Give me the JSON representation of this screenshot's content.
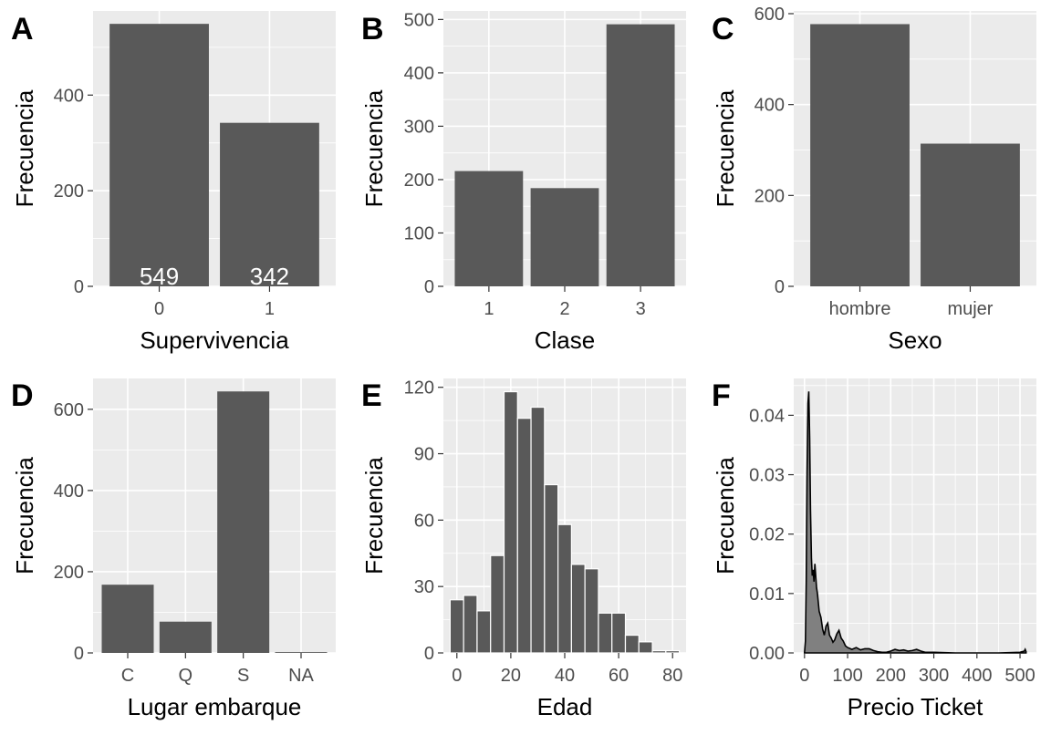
{
  "chart_data": [
    {
      "tag": "A",
      "type": "bar",
      "categories": [
        "0",
        "1"
      ],
      "values": [
        549,
        342
      ],
      "bar_labels": [
        "549",
        "342"
      ],
      "xlabel": "Supervivencia",
      "ylabel": "Frecuencia",
      "ylim": [
        0,
        576
      ],
      "yticks": [
        0,
        200,
        400
      ]
    },
    {
      "tag": "B",
      "type": "bar",
      "categories": [
        "1",
        "2",
        "3"
      ],
      "values": [
        216,
        184,
        491
      ],
      "xlabel": "Clase",
      "ylabel": "Frecuencia",
      "ylim": [
        0,
        516
      ],
      "yticks": [
        0,
        100,
        200,
        300,
        400,
        500
      ]
    },
    {
      "tag": "C",
      "type": "bar",
      "categories": [
        "hombre",
        "mujer"
      ],
      "values": [
        577,
        314
      ],
      "xlabel": "Sexo",
      "ylabel": "Frecuencia",
      "ylim": [
        0,
        606
      ],
      "yticks": [
        0,
        200,
        400,
        600
      ]
    },
    {
      "tag": "D",
      "type": "bar",
      "categories": [
        "C",
        "Q",
        "S",
        "NA"
      ],
      "values": [
        168,
        77,
        644,
        2
      ],
      "xlabel": "Lugar embarque",
      "ylabel": "Frecuencia",
      "ylim": [
        0,
        676
      ],
      "yticks": [
        0,
        200,
        400,
        600
      ]
    },
    {
      "tag": "E",
      "type": "histogram",
      "bins": [
        {
          "x0": -2.5,
          "x1": 2.5,
          "count": 24
        },
        {
          "x0": 2.5,
          "x1": 7.5,
          "count": 26
        },
        {
          "x0": 7.5,
          "x1": 12.5,
          "count": 19
        },
        {
          "x0": 12.5,
          "x1": 17.5,
          "count": 44
        },
        {
          "x0": 17.5,
          "x1": 22.5,
          "count": 118
        },
        {
          "x0": 22.5,
          "x1": 27.5,
          "count": 106
        },
        {
          "x0": 27.5,
          "x1": 32.5,
          "count": 111
        },
        {
          "x0": 32.5,
          "x1": 37.5,
          "count": 76
        },
        {
          "x0": 37.5,
          "x1": 42.5,
          "count": 58
        },
        {
          "x0": 42.5,
          "x1": 47.5,
          "count": 40
        },
        {
          "x0": 47.5,
          "x1": 52.5,
          "count": 38
        },
        {
          "x0": 52.5,
          "x1": 57.5,
          "count": 18
        },
        {
          "x0": 57.5,
          "x1": 62.5,
          "count": 18
        },
        {
          "x0": 62.5,
          "x1": 67.5,
          "count": 8
        },
        {
          "x0": 67.5,
          "x1": 72.5,
          "count": 5
        },
        {
          "x0": 72.5,
          "x1": 77.5,
          "count": 1
        },
        {
          "x0": 77.5,
          "x1": 82.5,
          "count": 1
        }
      ],
      "xlabel": "Edad",
      "ylabel": "Frecuencia",
      "xlim": [
        -5,
        85
      ],
      "xticks": [
        0,
        20,
        40,
        60,
        80
      ],
      "ylim": [
        0,
        124
      ],
      "yticks": [
        0,
        30,
        60,
        90,
        120
      ]
    },
    {
      "tag": "F",
      "type": "area",
      "x": [
        0,
        2,
        4,
        6,
        8,
        10,
        12,
        14,
        16,
        18,
        20,
        22,
        24,
        26,
        28,
        30,
        34,
        38,
        42,
        46,
        50,
        54,
        58,
        62,
        66,
        70,
        75,
        80,
        85,
        90,
        95,
        100,
        110,
        120,
        130,
        140,
        150,
        160,
        170,
        180,
        190,
        200,
        210,
        220,
        230,
        240,
        250,
        260,
        270,
        280,
        300,
        350,
        400,
        450,
        500,
        510,
        512,
        514
      ],
      "y": [
        0,
        0.002,
        0.012,
        0.03,
        0.042,
        0.044,
        0.036,
        0.024,
        0.016,
        0.013,
        0.014,
        0.012,
        0.015,
        0.013,
        0.011,
        0.01,
        0.007,
        0.006,
        0.004,
        0.003,
        0.0045,
        0.005,
        0.003,
        0.0025,
        0.0018,
        0.0022,
        0.0032,
        0.0038,
        0.0025,
        0.002,
        0.0012,
        0.0009,
        0.0006,
        0.0009,
        0.0005,
        0.0007,
        0.0007,
        0.0004,
        0.0002,
        0.0001,
        0.0001,
        0.0003,
        0.0006,
        0.0004,
        0.0005,
        0.0003,
        0.0004,
        0.0006,
        0.0003,
        0.0001,
        0.0001,
        0,
        0,
        0,
        0.0001,
        0.0003,
        0.0006,
        0.0002
      ],
      "xlabel": "Precio Ticket",
      "ylabel": "Frecuencia",
      "xlim": [
        -25,
        538
      ],
      "xticks": [
        0,
        100,
        200,
        300,
        400,
        500
      ],
      "ylim": [
        0,
        0.0462
      ],
      "yticks": [
        0,
        0.01,
        0.02,
        0.03,
        0.04
      ],
      "ytick_labels": [
        "0.00",
        "0.01",
        "0.02",
        "0.03",
        "0.04"
      ]
    }
  ]
}
